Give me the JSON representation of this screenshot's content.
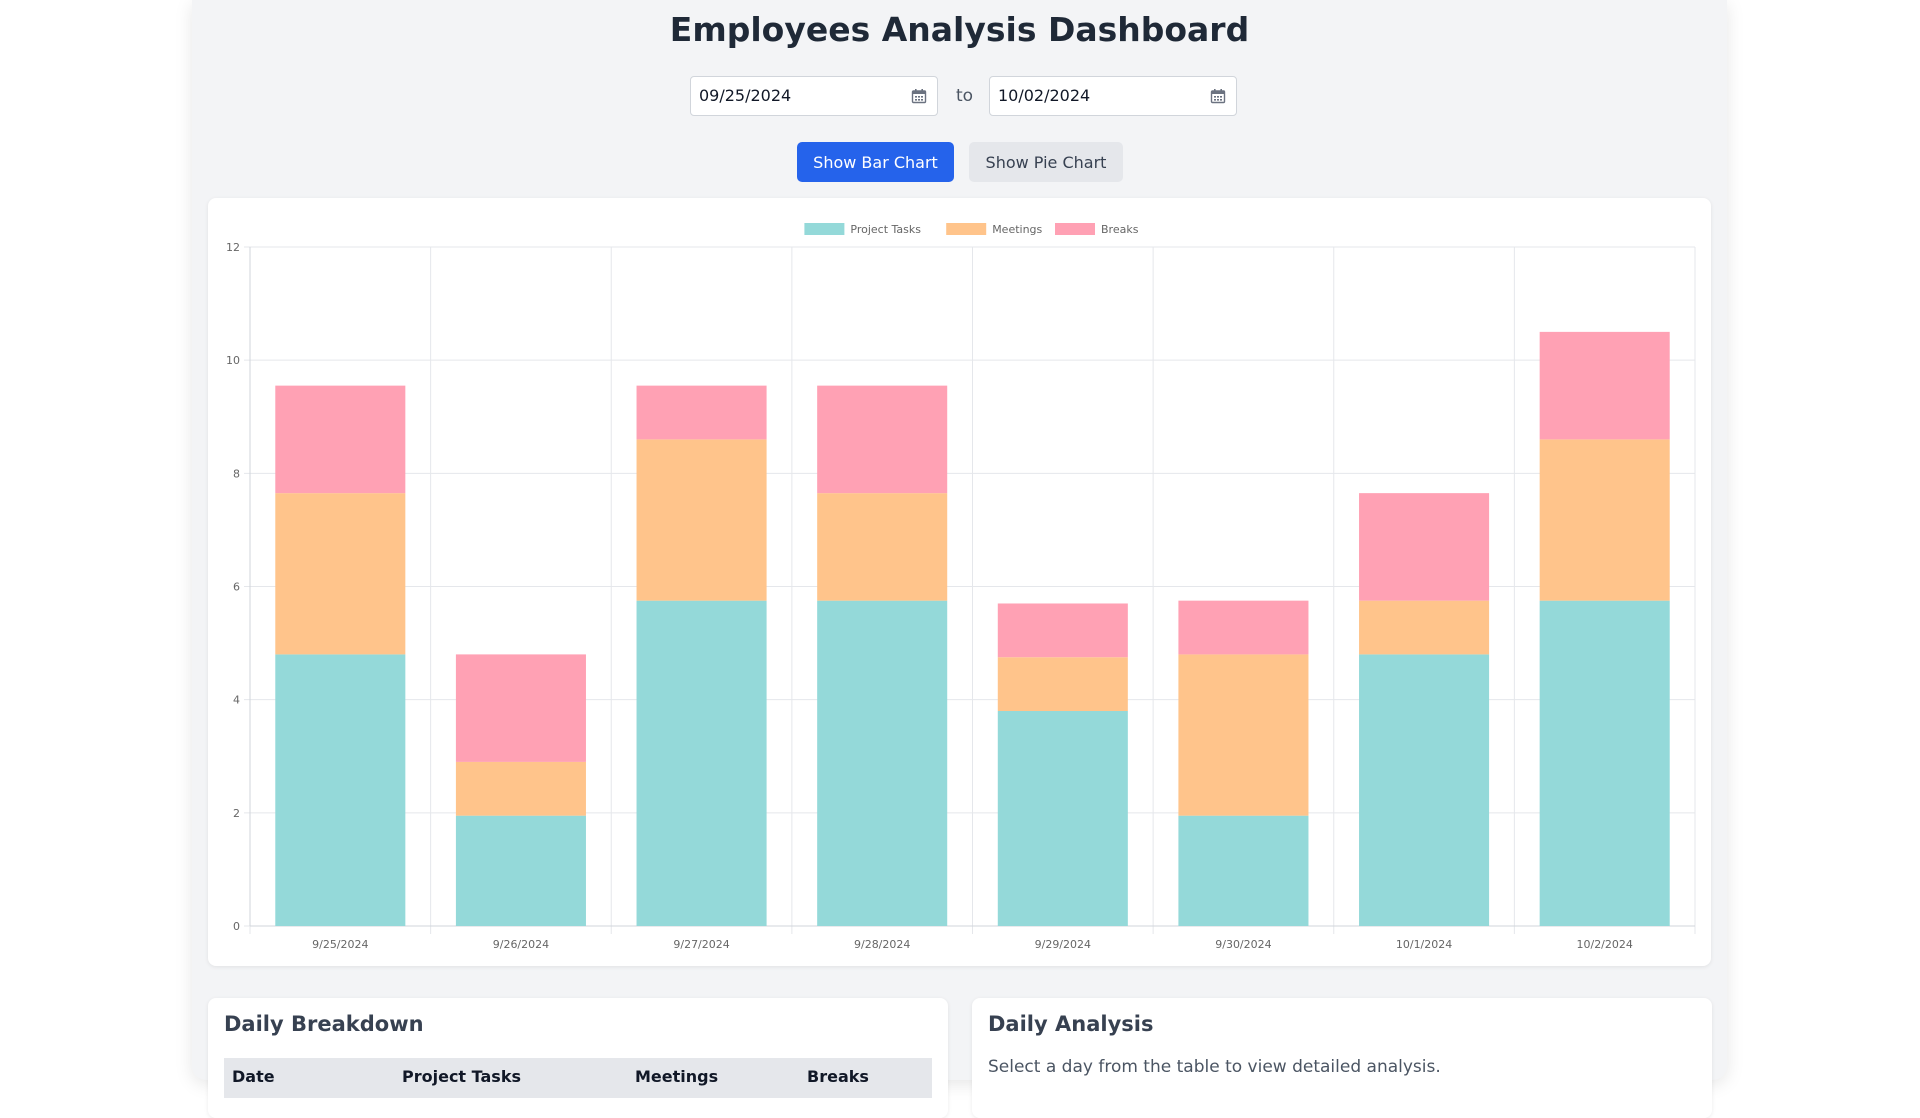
{
  "page": {
    "title": "Employees Analysis Dashboard"
  },
  "date_range": {
    "start": "09/25/2024",
    "separator": "to",
    "end": "10/02/2024"
  },
  "buttons": {
    "bar": "Show Bar Chart",
    "pie": "Show Pie Chart"
  },
  "colors": {
    "project_tasks": "#94d9d9",
    "meetings": "#ffc48b",
    "breaks": "#ffa1b4",
    "accent": "#2563eb"
  },
  "chart_data": {
    "type": "bar",
    "stacked": true,
    "categories": [
      "9/25/2024",
      "9/26/2024",
      "9/27/2024",
      "9/28/2024",
      "9/29/2024",
      "9/30/2024",
      "10/1/2024",
      "10/2/2024"
    ],
    "series": [
      {
        "name": "Project Tasks",
        "values": [
          4.8,
          1.95,
          5.75,
          5.75,
          3.8,
          1.95,
          4.8,
          5.75
        ]
      },
      {
        "name": "Meetings",
        "values": [
          2.85,
          0.95,
          2.85,
          1.9,
          0.95,
          2.85,
          0.95,
          2.85
        ]
      },
      {
        "name": "Breaks",
        "values": [
          1.9,
          1.9,
          0.95,
          1.9,
          0.95,
          0.95,
          1.9,
          1.9
        ]
      }
    ],
    "yticks": [
      0,
      2,
      4,
      6,
      8,
      10,
      12
    ],
    "ylim": [
      0,
      12
    ],
    "grid": true,
    "legend": "top-center"
  },
  "daily_breakdown": {
    "title": "Daily Breakdown",
    "columns": [
      "Date",
      "Project Tasks",
      "Meetings",
      "Breaks"
    ]
  },
  "daily_analysis": {
    "title": "Daily Analysis",
    "message": "Select a day from the table to view detailed analysis."
  }
}
